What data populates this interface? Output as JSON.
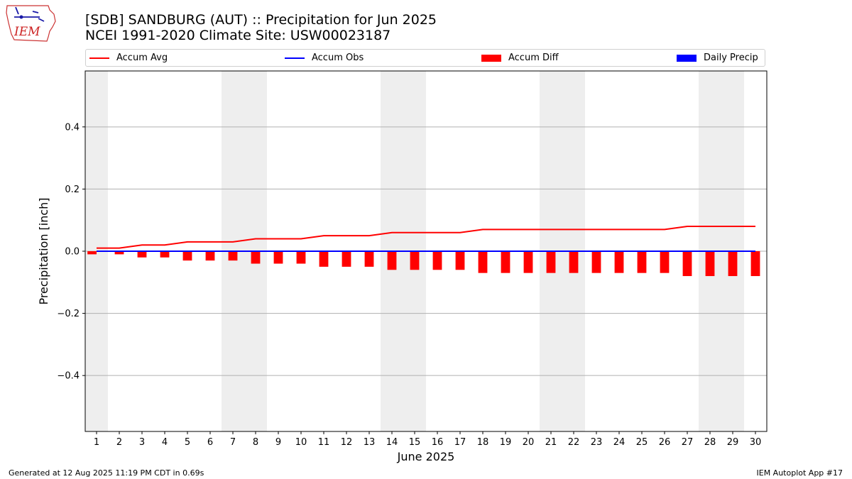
{
  "header": {
    "title_line1": "[SDB] SANDBURG (AUT) :: Precipitation for Jun 2025",
    "title_line2": "NCEI 1991-2020 Climate Site: USW00023187"
  },
  "logo": {
    "text": "IEM",
    "icon": "iowa-state-outline-icon"
  },
  "legend": {
    "accum_avg": "Accum Avg",
    "accum_obs": "Accum Obs",
    "accum_diff": "Accum Diff",
    "daily_precip": "Daily Precip"
  },
  "footer": {
    "generated": "Generated at 12 Aug 2025 11:19 PM CDT in 0.69s",
    "app": "IEM Autoplot App #17"
  },
  "colors": {
    "accum_avg": "#ff0000",
    "accum_obs": "#0000ff",
    "accum_diff": "#ff0000",
    "daily_precip": "#0000ff",
    "weekend_band": "#eeeeee",
    "grid": "#b0b0b0"
  },
  "chart_data": {
    "type": "bar",
    "xlabel": "June 2025",
    "ylabel": "Precipitation [inch]",
    "ylim": [
      -0.58,
      0.58
    ],
    "yticks": [
      0.4,
      0.2,
      0.0,
      -0.2,
      -0.4
    ],
    "ytick_labels": [
      "0.4",
      "0.2",
      "0.0",
      "−0.2",
      "−0.4"
    ],
    "x": [
      1,
      2,
      3,
      4,
      5,
      6,
      7,
      8,
      9,
      10,
      11,
      12,
      13,
      14,
      15,
      16,
      17,
      18,
      19,
      20,
      21,
      22,
      23,
      24,
      25,
      26,
      27,
      28,
      29,
      30
    ],
    "weekend_days": [
      1,
      7,
      8,
      14,
      15,
      21,
      22,
      28,
      29
    ],
    "grid": "horizontal",
    "legend_position": "top",
    "series": [
      {
        "name": "Accum Avg",
        "kind": "line",
        "values": [
          0.01,
          0.01,
          0.02,
          0.02,
          0.03,
          0.03,
          0.03,
          0.04,
          0.04,
          0.04,
          0.05,
          0.05,
          0.05,
          0.06,
          0.06,
          0.06,
          0.06,
          0.07,
          0.07,
          0.07,
          0.07,
          0.07,
          0.07,
          0.07,
          0.07,
          0.07,
          0.08,
          0.08,
          0.08,
          0.08
        ]
      },
      {
        "name": "Accum Obs",
        "kind": "line",
        "values": [
          0,
          0,
          0,
          0,
          0,
          0,
          0,
          0,
          0,
          0,
          0,
          0,
          0,
          0,
          0,
          0,
          0,
          0,
          0,
          0,
          0,
          0,
          0,
          0,
          0,
          0,
          0,
          0,
          0,
          0
        ]
      },
      {
        "name": "Accum Diff",
        "kind": "bar",
        "values": [
          -0.01,
          -0.01,
          -0.02,
          -0.02,
          -0.03,
          -0.03,
          -0.03,
          -0.04,
          -0.04,
          -0.04,
          -0.05,
          -0.05,
          -0.05,
          -0.06,
          -0.06,
          -0.06,
          -0.06,
          -0.07,
          -0.07,
          -0.07,
          -0.07,
          -0.07,
          -0.07,
          -0.07,
          -0.07,
          -0.07,
          -0.08,
          -0.08,
          -0.08,
          -0.08
        ]
      },
      {
        "name": "Daily Precip",
        "kind": "bar",
        "values": [
          0,
          0,
          0,
          0,
          0,
          0,
          0,
          0,
          0,
          0,
          0,
          0,
          0,
          0,
          0,
          0,
          0,
          0,
          0,
          0,
          0,
          0,
          0,
          0,
          0,
          0,
          0,
          0,
          0,
          0
        ]
      }
    ]
  }
}
